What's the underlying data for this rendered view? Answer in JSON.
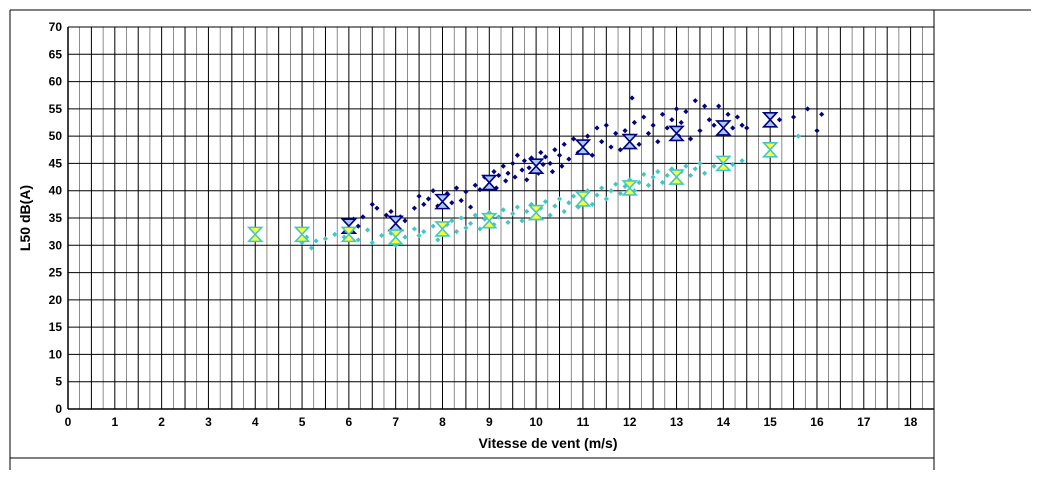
{
  "chart_data": {
    "type": "scatter",
    "xlabel": "Vitesse de vent (m/s)",
    "ylabel": "L50 dB(A)",
    "xlim": [
      0,
      18.5
    ],
    "ylim": [
      0,
      70
    ],
    "xticks": [
      0,
      1,
      2,
      3,
      4,
      5,
      6,
      7,
      8,
      9,
      10,
      11,
      12,
      13,
      14,
      15,
      16,
      17,
      18
    ],
    "yticks": [
      0,
      5,
      10,
      15,
      20,
      25,
      30,
      35,
      40,
      45,
      50,
      55,
      60,
      65,
      70
    ],
    "grid": true,
    "legend": "none",
    "colors": {
      "dark_points": "#000080",
      "light_points": "#40c8c8",
      "dark_marker_fill": "#a8c8ff",
      "dark_marker_stroke": "#000080",
      "light_marker_fill": "#ffff33",
      "light_marker_stroke": "#40c8c8",
      "grid": "#000000"
    },
    "series": [
      {
        "marker": "diamond",
        "color": "#000080",
        "points": [
          [
            6.1,
            34.8
          ],
          [
            6.2,
            33.5
          ],
          [
            6.3,
            35.2
          ],
          [
            6.5,
            37.5
          ],
          [
            6.6,
            36.8
          ],
          [
            6.8,
            35.5
          ],
          [
            6.9,
            36.2
          ],
          [
            7.0,
            33.5
          ],
          [
            7.1,
            35.2
          ],
          [
            7.2,
            34.5
          ],
          [
            7.4,
            36.8
          ],
          [
            7.5,
            39.0
          ],
          [
            7.6,
            37.5
          ],
          [
            7.7,
            38.5
          ],
          [
            7.8,
            40.0
          ],
          [
            7.9,
            37.2
          ],
          [
            8.0,
            38.5
          ],
          [
            8.1,
            39.5
          ],
          [
            8.2,
            37.8
          ],
          [
            8.3,
            40.5
          ],
          [
            8.4,
            38.2
          ],
          [
            8.5,
            39.8
          ],
          [
            8.6,
            37.0
          ],
          [
            8.7,
            41.0
          ],
          [
            8.8,
            40.2
          ],
          [
            8.9,
            42.5
          ],
          [
            9.0,
            41.2
          ],
          [
            9.1,
            43.5
          ],
          [
            9.15,
            40.5
          ],
          [
            9.2,
            42.8
          ],
          [
            9.3,
            44.5
          ],
          [
            9.35,
            41.8
          ],
          [
            9.4,
            43.2
          ],
          [
            9.5,
            45.0
          ],
          [
            9.55,
            42.5
          ],
          [
            9.6,
            46.5
          ],
          [
            9.7,
            43.8
          ],
          [
            9.75,
            45.5
          ],
          [
            9.8,
            42.0
          ],
          [
            9.85,
            44.2
          ],
          [
            9.9,
            46.0
          ],
          [
            10.0,
            45.5
          ],
          [
            10.05,
            43.2
          ],
          [
            10.1,
            47.0
          ],
          [
            10.15,
            44.8
          ],
          [
            10.2,
            46.2
          ],
          [
            10.3,
            45.0
          ],
          [
            10.35,
            43.5
          ],
          [
            10.4,
            47.5
          ],
          [
            10.5,
            46.5
          ],
          [
            10.55,
            44.5
          ],
          [
            10.6,
            48.5
          ],
          [
            10.7,
            45.8
          ],
          [
            10.8,
            49.5
          ],
          [
            10.9,
            47.0
          ],
          [
            11.0,
            48.5
          ],
          [
            11.1,
            50.0
          ],
          [
            11.2,
            46.5
          ],
          [
            11.3,
            51.5
          ],
          [
            11.4,
            49.0
          ],
          [
            11.5,
            52.0
          ],
          [
            11.6,
            48.0
          ],
          [
            11.7,
            50.5
          ],
          [
            11.8,
            47.5
          ],
          [
            11.9,
            51.0
          ],
          [
            12.0,
            49.5
          ],
          [
            12.05,
            57.0
          ],
          [
            12.1,
            52.5
          ],
          [
            12.2,
            48.5
          ],
          [
            12.3,
            53.5
          ],
          [
            12.4,
            50.5
          ],
          [
            12.5,
            52.0
          ],
          [
            12.6,
            49.0
          ],
          [
            12.7,
            54.0
          ],
          [
            12.8,
            51.5
          ],
          [
            12.9,
            53.0
          ],
          [
            13.0,
            55.0
          ],
          [
            13.05,
            50.0
          ],
          [
            13.1,
            52.5
          ],
          [
            13.2,
            54.5
          ],
          [
            13.3,
            49.5
          ],
          [
            13.4,
            56.5
          ],
          [
            13.5,
            51.0
          ],
          [
            13.6,
            55.5
          ],
          [
            13.7,
            53.0
          ],
          [
            13.8,
            52.0
          ],
          [
            13.9,
            55.5
          ],
          [
            14.0,
            50.5
          ],
          [
            14.1,
            54.0
          ],
          [
            14.2,
            51.5
          ],
          [
            14.3,
            53.5
          ],
          [
            14.4,
            52.0
          ],
          [
            14.5,
            51.5
          ],
          [
            15.0,
            52.5
          ],
          [
            15.2,
            53.0
          ],
          [
            15.5,
            53.5
          ],
          [
            15.8,
            55.0
          ],
          [
            16.0,
            51.0
          ],
          [
            16.1,
            54.0
          ]
        ]
      },
      {
        "marker": "diamond",
        "color": "#40c8c8",
        "points": [
          [
            5.0,
            30.5
          ],
          [
            5.1,
            31.5
          ],
          [
            5.2,
            29.5
          ],
          [
            5.3,
            30.8
          ],
          [
            5.5,
            31.2
          ],
          [
            5.7,
            32.0
          ],
          [
            5.9,
            31.5
          ],
          [
            6.0,
            32.5
          ],
          [
            6.2,
            31.0
          ],
          [
            6.4,
            32.8
          ],
          [
            6.5,
            30.5
          ],
          [
            6.7,
            31.8
          ],
          [
            6.9,
            32.2
          ],
          [
            7.0,
            30.0
          ],
          [
            7.2,
            31.5
          ],
          [
            7.4,
            33.0
          ],
          [
            7.5,
            31.8
          ],
          [
            7.6,
            32.5
          ],
          [
            7.8,
            33.5
          ],
          [
            7.9,
            31.0
          ],
          [
            8.0,
            32.0
          ],
          [
            8.1,
            33.8
          ],
          [
            8.2,
            34.5
          ],
          [
            8.3,
            32.5
          ],
          [
            8.4,
            35.0
          ],
          [
            8.5,
            33.2
          ],
          [
            8.6,
            34.0
          ],
          [
            8.7,
            35.5
          ],
          [
            8.8,
            33.0
          ],
          [
            8.9,
            34.8
          ],
          [
            9.0,
            36.0
          ],
          [
            9.1,
            33.8
          ],
          [
            9.2,
            35.2
          ],
          [
            9.3,
            36.5
          ],
          [
            9.4,
            34.2
          ],
          [
            9.5,
            35.8
          ],
          [
            9.6,
            37.0
          ],
          [
            9.7,
            34.5
          ],
          [
            9.8,
            36.2
          ],
          [
            9.9,
            37.5
          ],
          [
            10.0,
            35.0
          ],
          [
            10.1,
            36.8
          ],
          [
            10.2,
            38.0
          ],
          [
            10.3,
            35.5
          ],
          [
            10.4,
            37.2
          ],
          [
            10.5,
            38.5
          ],
          [
            10.6,
            36.2
          ],
          [
            10.7,
            37.8
          ],
          [
            10.8,
            39.0
          ],
          [
            10.9,
            37.0
          ],
          [
            11.0,
            38.5
          ],
          [
            11.1,
            40.0
          ],
          [
            11.2,
            37.5
          ],
          [
            11.3,
            39.2
          ],
          [
            11.4,
            40.5
          ],
          [
            11.5,
            38.5
          ],
          [
            11.6,
            40.0
          ],
          [
            11.7,
            41.2
          ],
          [
            11.8,
            39.5
          ],
          [
            11.9,
            40.8
          ],
          [
            12.0,
            42.0
          ],
          [
            12.1,
            40.0
          ],
          [
            12.2,
            41.5
          ],
          [
            12.3,
            43.0
          ],
          [
            12.4,
            41.0
          ],
          [
            12.5,
            42.5
          ],
          [
            12.6,
            43.5
          ],
          [
            12.7,
            41.5
          ],
          [
            12.8,
            42.8
          ],
          [
            12.9,
            44.0
          ],
          [
            13.0,
            42.0
          ],
          [
            13.1,
            43.5
          ],
          [
            13.2,
            44.5
          ],
          [
            13.3,
            42.8
          ],
          [
            13.4,
            44.0
          ],
          [
            13.5,
            45.0
          ],
          [
            13.6,
            43.2
          ],
          [
            13.8,
            44.5
          ],
          [
            14.0,
            46.0
          ],
          [
            14.2,
            44.8
          ],
          [
            14.4,
            45.5
          ],
          [
            15.0,
            46.5
          ],
          [
            15.6,
            50.0
          ]
        ]
      },
      {
        "marker": "hourglass",
        "fill": "#a8c8ff",
        "stroke": "#000080",
        "points": [
          [
            6,
            33.5
          ],
          [
            7,
            34.0
          ],
          [
            8,
            38.0
          ],
          [
            9,
            41.5
          ],
          [
            10,
            44.5
          ],
          [
            11,
            48.0
          ],
          [
            12,
            49.0
          ],
          [
            13,
            50.5
          ],
          [
            14,
            51.5
          ],
          [
            15,
            53.0
          ]
        ]
      },
      {
        "marker": "hourglass",
        "fill": "#ffff33",
        "stroke": "#40c8c8",
        "points": [
          [
            4,
            32.0
          ],
          [
            5,
            32.0
          ],
          [
            6,
            32.0
          ],
          [
            7,
            31.5
          ],
          [
            8,
            33.0
          ],
          [
            9,
            34.5
          ],
          [
            10,
            36.0
          ],
          [
            11,
            38.5
          ],
          [
            12,
            40.5
          ],
          [
            13,
            42.5
          ],
          [
            14,
            45.0
          ],
          [
            15,
            47.5
          ]
        ]
      }
    ]
  }
}
